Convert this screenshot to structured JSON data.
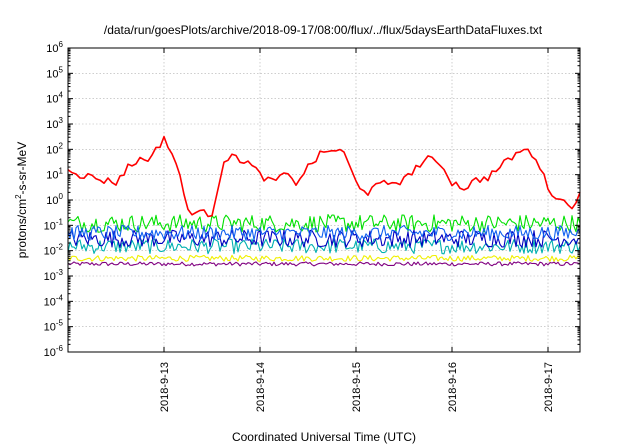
{
  "chart_data": {
    "type": "line",
    "title": "/data/run/goesPlots/archive/2018-09-17/08:00/flux/../flux/5daysEarthDataFluxes.txt",
    "xlabel": "Coordinated Universal Time (UTC)",
    "ylabel_parts": [
      "protons/cm",
      "2",
      "-s-sr-MeV"
    ],
    "y_scale": "log",
    "ylim": [
      1e-06,
      1000000.0
    ],
    "xlim": [
      "2018-09-12 00:00",
      "2018-09-17 08:00"
    ],
    "grid": true,
    "y_ticks": [
      {
        "base": "10",
        "exp": "-6"
      },
      {
        "base": "10",
        "exp": "-5"
      },
      {
        "base": "10",
        "exp": "-4"
      },
      {
        "base": "10",
        "exp": "-3"
      },
      {
        "base": "10",
        "exp": "-2"
      },
      {
        "base": "10",
        "exp": "-1"
      },
      {
        "base": "10",
        "exp": "0"
      },
      {
        "base": "10",
        "exp": "1"
      },
      {
        "base": "10",
        "exp": "2"
      },
      {
        "base": "10",
        "exp": "3"
      },
      {
        "base": "10",
        "exp": "4"
      },
      {
        "base": "10",
        "exp": "5"
      },
      {
        "base": "10",
        "exp": "6"
      }
    ],
    "x_ticks": [
      {
        "label": "2018-9-13",
        "value": "2018-09-13"
      },
      {
        "label": "2018-9-14",
        "value": "2018-09-14"
      },
      {
        "label": "2018-9-15",
        "value": "2018-09-15"
      },
      {
        "label": "2018-9-16",
        "value": "2018-09-16"
      },
      {
        "label": "2018-9-17",
        "value": "2018-09-17"
      }
    ],
    "series": [
      {
        "color": "#ff0000",
        "x": [
          "2018-09-12 00:00",
          "2018-09-12 03:00",
          "2018-09-12 06:00",
          "2018-09-12 09:00",
          "2018-09-12 12:00",
          "2018-09-12 15:00",
          "2018-09-12 18:00",
          "2018-09-12 21:00",
          "2018-09-13 00:00",
          "2018-09-13 03:00",
          "2018-09-13 06:00",
          "2018-09-13 09:00",
          "2018-09-13 12:00",
          "2018-09-13 15:00",
          "2018-09-13 18:00",
          "2018-09-13 21:00",
          "2018-09-14 00:00",
          "2018-09-14 03:00",
          "2018-09-14 06:00",
          "2018-09-14 09:00",
          "2018-09-14 12:00",
          "2018-09-14 15:00",
          "2018-09-14 18:00",
          "2018-09-14 21:00",
          "2018-09-15 00:00",
          "2018-09-15 03:00",
          "2018-09-15 06:00",
          "2018-09-15 09:00",
          "2018-09-15 12:00",
          "2018-09-15 15:00",
          "2018-09-15 18:00",
          "2018-09-15 21:00",
          "2018-09-16 00:00",
          "2018-09-16 03:00",
          "2018-09-16 06:00",
          "2018-09-16 09:00",
          "2018-09-16 12:00",
          "2018-09-16 15:00",
          "2018-09-16 18:00",
          "2018-09-16 21:00",
          "2018-09-17 00:00",
          "2018-09-17 03:00",
          "2018-09-17 06:00",
          "2018-09-17 08:00"
        ],
        "values": [
          20,
          10,
          8,
          6,
          5,
          20,
          40,
          50,
          300,
          30,
          0.4,
          0.3,
          0.3,
          40,
          50,
          30,
          10,
          5,
          10,
          5,
          20,
          60,
          100,
          70,
          5,
          2,
          4,
          5,
          6,
          20,
          40,
          30,
          5,
          3,
          6,
          8,
          20,
          50,
          100,
          50,
          3,
          1,
          0.6,
          2
        ]
      },
      {
        "color": "#00e000",
        "x": [
          "2018-09-12 00:00",
          "2018-09-17 08:00"
        ],
        "values": [
          0.12,
          0.12
        ]
      },
      {
        "color": "#1060f0",
        "x": [
          "2018-09-12 00:00",
          "2018-09-17 08:00"
        ],
        "values": [
          0.05,
          0.05
        ]
      },
      {
        "color": "#0000c0",
        "x": [
          "2018-09-12 00:00",
          "2018-09-17 08:00"
        ],
        "values": [
          0.03,
          0.03
        ]
      },
      {
        "color": "#00b0b0",
        "x": [
          "2018-09-12 00:00",
          "2018-09-17 08:00"
        ],
        "values": [
          0.015,
          0.015
        ]
      },
      {
        "color": "#f0f000",
        "x": [
          "2018-09-12 00:00",
          "2018-09-17 08:00"
        ],
        "values": [
          0.005,
          0.005
        ]
      },
      {
        "color": "#800080",
        "x": [
          "2018-09-12 00:00",
          "2018-09-17 08:00"
        ],
        "values": [
          0.003,
          0.003
        ]
      }
    ]
  }
}
